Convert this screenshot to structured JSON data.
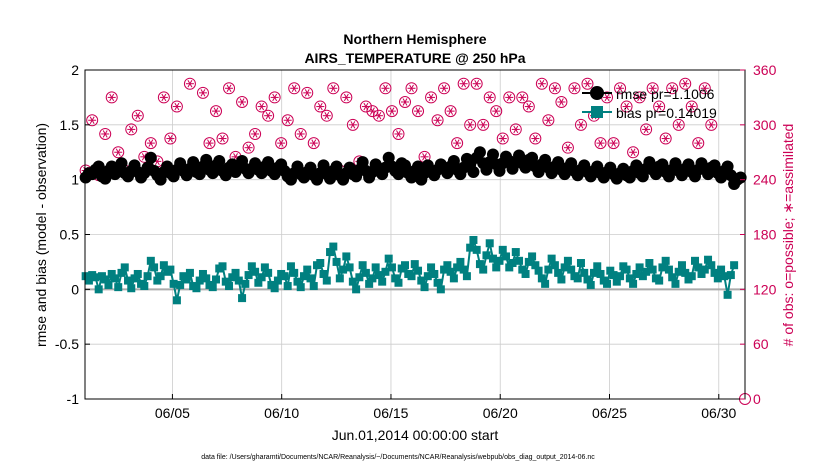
{
  "chart_data": {
    "type": "line",
    "title": "Northern Hemisphere",
    "subtitle": "AIRS_TEMPERATURE @ 250 hPa",
    "xlabel": "Jun.01,2014 00:00:00 start",
    "ylabel_left": "rmse and bias (model - observation)",
    "ylabel_right": "# of obs: o=possible; ∗=assimilated",
    "footnote": "data file: /Users/gharamti/Documents/NCAR/Reanalysis/~/Documents/NCAR/Reanalysis/webpub/obs_diag_output_2014-06.nc",
    "x_ticks": [
      {
        "day": 5,
        "label": "06/05"
      },
      {
        "day": 10,
        "label": "06/10"
      },
      {
        "day": 15,
        "label": "06/15"
      },
      {
        "day": 20,
        "label": "06/20"
      },
      {
        "day": 25,
        "label": "06/25"
      },
      {
        "day": 30,
        "label": "06/30"
      }
    ],
    "xlim_days": [
      1.0,
      31.2
    ],
    "ylim_left": [
      -1,
      2
    ],
    "y_ticks_left": [
      "2",
      "1.5",
      "1",
      "0.5",
      "0",
      "-0.5",
      "-1"
    ],
    "ylim_right": [
      0,
      360
    ],
    "y_ticks_right": [
      "360",
      "300",
      "240",
      "180",
      "120",
      "60",
      "0"
    ],
    "grid": true,
    "legend_placement": "top-right",
    "colors": {
      "rmse": "#000000",
      "bias": "#008080",
      "obs": "#cc0055",
      "zero_line": "#aaaaaa",
      "grid": "#cccccc"
    },
    "series": [
      {
        "name": "rmse pr=1.1006",
        "axis": "left",
        "values": [
          1.02,
          1.06,
          1.05,
          1.09,
          1.12,
          1.03,
          1.01,
          1.08,
          1.12,
          1.05,
          1.1,
          1.15,
          1.06,
          1.03,
          1.08,
          1.13,
          1.07,
          1.02,
          1.06,
          1.11,
          1.2,
          1.08,
          1.04,
          1.0,
          1.07,
          1.12,
          1.06,
          1.03,
          1.09,
          1.15,
          1.08,
          1.04,
          1.1,
          1.16,
          1.07,
          1.05,
          1.12,
          1.18,
          1.09,
          1.06,
          1.13,
          1.17,
          1.08,
          1.04,
          1.11,
          1.14,
          1.07,
          1.12,
          1.17,
          1.1,
          1.06,
          1.1,
          1.15,
          1.09,
          1.06,
          1.12,
          1.16,
          1.08,
          1.05,
          1.11,
          1.14,
          1.08,
          1.03,
          1.0,
          1.06,
          1.12,
          1.05,
          1.02,
          1.07,
          1.11,
          1.04,
          1.0,
          1.06,
          1.13,
          1.05,
          1.01,
          1.08,
          1.12,
          1.04,
          1.0,
          1.06,
          1.11,
          1.05,
          1.03,
          1.09,
          1.16,
          1.08,
          1.02,
          1.07,
          1.14,
          1.1,
          1.05,
          1.11,
          1.2,
          1.12,
          1.08,
          1.05,
          1.15,
          1.13,
          1.06,
          1.02,
          1.08,
          1.12,
          1.0,
          1.06,
          1.13,
          1.08,
          1.04,
          1.09,
          1.14,
          1.1,
          1.06,
          1.12,
          1.17,
          1.09,
          1.05,
          1.11,
          1.19,
          1.14,
          1.07,
          1.2,
          1.25,
          1.15,
          1.09,
          1.16,
          1.23,
          1.14,
          1.08,
          1.15,
          1.21,
          1.17,
          1.1,
          1.16,
          1.22,
          1.15,
          1.11,
          1.18,
          1.2,
          1.12,
          1.07,
          1.14,
          1.18,
          1.11,
          1.06,
          1.12,
          1.16,
          1.09,
          1.05,
          1.11,
          1.15,
          1.08,
          1.04,
          1.09,
          1.13,
          1.07,
          1.03,
          1.08,
          1.12,
          1.06,
          1.02,
          1.07,
          1.11,
          1.05,
          1.01,
          1.06,
          1.1,
          1.04,
          1.02,
          1.08,
          1.13,
          1.06,
          1.03,
          1.1,
          1.16,
          1.09,
          1.05,
          1.12,
          1.14,
          1.07,
          1.03,
          1.09,
          1.15,
          1.08,
          1.04,
          1.1,
          1.14,
          1.07,
          1.03,
          1.09,
          1.15,
          1.1,
          1.05,
          1.11,
          1.13,
          1.06,
          1.02,
          1.08,
          1.12,
          1.04,
          0.96,
          1.0,
          1.02
        ]
      },
      {
        "name": "bias pr=0.14019",
        "axis": "left",
        "values": [
          0.12,
          0.08,
          0.13,
          0.11,
          0.0,
          0.12,
          0.09,
          0.04,
          0.14,
          0.1,
          0.02,
          0.15,
          0.2,
          0.08,
          0.01,
          0.1,
          0.14,
          0.05,
          0.03,
          0.12,
          0.26,
          0.2,
          0.08,
          0.12,
          0.22,
          0.16,
          0.18,
          0.05,
          -0.1,
          0.04,
          0.12,
          0.09,
          0.15,
          0.03,
          0.01,
          0.08,
          0.14,
          0.1,
          0.04,
          0.02,
          0.09,
          0.19,
          0.21,
          0.07,
          0.03,
          0.11,
          0.15,
          0.08,
          -0.08,
          0.05,
          0.13,
          0.21,
          0.16,
          0.06,
          0.11,
          0.2,
          0.15,
          0.04,
          0.01,
          0.08,
          0.14,
          0.12,
          0.03,
          0.21,
          0.15,
          0.07,
          0.02,
          0.12,
          0.18,
          0.1,
          0.03,
          0.22,
          0.24,
          0.14,
          0.08,
          0.34,
          0.39,
          0.25,
          0.1,
          0.18,
          0.3,
          0.2,
          0.07,
          0.0,
          0.11,
          0.22,
          0.15,
          0.05,
          0.1,
          0.2,
          0.13,
          0.07,
          0.16,
          0.28,
          0.2,
          0.1,
          0.06,
          0.19,
          0.22,
          0.14,
          0.12,
          0.23,
          0.17,
          0.08,
          0.02,
          0.12,
          0.2,
          0.14,
          0.06,
          0.0,
          0.18,
          0.22,
          0.16,
          0.1,
          0.2,
          0.25,
          0.18,
          0.12,
          0.38,
          0.45,
          0.36,
          0.23,
          0.18,
          0.31,
          0.42,
          0.28,
          0.2,
          0.26,
          0.36,
          0.3,
          0.2,
          0.24,
          0.34,
          0.26,
          0.18,
          0.14,
          0.25,
          0.3,
          0.22,
          0.17,
          0.1,
          0.05,
          0.18,
          0.28,
          0.22,
          0.15,
          0.09,
          0.2,
          0.26,
          0.18,
          0.12,
          0.1,
          0.24,
          0.15,
          0.09,
          0.04,
          0.15,
          0.21,
          0.14,
          0.08,
          0.05,
          0.17,
          0.13,
          0.07,
          0.12,
          0.21,
          0.18,
          0.1,
          0.05,
          0.14,
          0.2,
          0.12,
          0.16,
          0.24,
          0.18,
          0.1,
          0.08,
          0.2,
          0.26,
          0.18,
          0.11,
          0.05,
          0.16,
          0.22,
          0.15,
          0.09,
          0.12,
          0.26,
          0.2,
          0.14,
          0.18,
          0.27,
          0.22,
          0.15,
          0.1,
          0.18,
          0.12,
          -0.05,
          0.13,
          0.22
        ]
      },
      {
        "name": "possible",
        "axis": "right",
        "values": [
          250,
          320,
          305,
          250,
          245,
          340,
          290,
          260,
          330,
          300,
          270,
          285,
          250,
          320,
          295,
          260,
          310,
          330,
          265,
          255,
          280,
          335,
          260,
          265,
          330,
          335,
          285,
          280,
          320,
          310,
          250,
          340,
          345,
          290,
          250,
          260,
          335,
          305,
          280,
          330,
          315,
          265,
          285,
          330,
          340,
          300,
          265,
          260,
          325,
          310,
          275,
          345,
          290,
          265,
          320,
          340,
          310,
          255,
          330,
          315,
          280,
          295,
          305,
          250,
          340,
          340,
          290,
          250,
          335,
          330,
          280,
          275,
          320,
          335,
          310,
          285,
          340,
          310,
          250,
          285,
          330,
          315,
          300,
          310,
          260,
          340,
          320,
          280,
          315,
          330,
          310,
          275,
          340,
          325,
          315,
          300,
          290,
          335,
          325,
          310,
          340,
          335,
          315,
          300,
          265,
          340,
          330,
          320,
          305,
          290,
          340,
          335,
          315,
          300,
          280,
          330,
          345,
          315,
          300,
          340,
          345,
          320,
          300,
          280,
          330,
          340,
          315,
          300,
          285,
          340,
          330,
          310,
          295,
          245,
          330,
          345,
          320,
          300,
          285,
          340,
          345,
          330,
          305,
          270,
          340,
          345,
          325,
          300,
          275,
          335,
          340,
          320,
          300,
          270,
          345,
          335,
          310,
          295,
          280,
          340,
          330,
          315,
          280,
          265,
          340,
          345,
          320,
          300,
          270,
          345,
          330,
          315,
          295,
          280,
          340,
          340,
          320,
          305,
          285,
          345,
          340,
          320,
          300,
          280,
          345,
          340,
          320,
          300,
          280,
          345,
          340,
          320,
          300,
          295
        ]
      },
      {
        "name": "assimilated",
        "axis": "right",
        "values": [
          250,
          320,
          305,
          250,
          245,
          340,
          290,
          260,
          330,
          300,
          270,
          285,
          250,
          320,
          295,
          260,
          310,
          330,
          265,
          255,
          280,
          335,
          260,
          265,
          330,
          335,
          285,
          280,
          320,
          310,
          250,
          340,
          345,
          290,
          250,
          260,
          335,
          305,
          280,
          330,
          315,
          265,
          285,
          330,
          340,
          300,
          265,
          260,
          325,
          310,
          275,
          345,
          290,
          265,
          320,
          340,
          310,
          255,
          330,
          315,
          280,
          295,
          305,
          250,
          340,
          340,
          290,
          250,
          335,
          330,
          280,
          275,
          320,
          335,
          310,
          285,
          340,
          310,
          250,
          285,
          330,
          315,
          300,
          310,
          260,
          340,
          320,
          280,
          315,
          330,
          310,
          275,
          340,
          325,
          315,
          300,
          290,
          335,
          325,
          310,
          340,
          335,
          315,
          300,
          265,
          340,
          330,
          320,
          305,
          290,
          340,
          335,
          315,
          300,
          280,
          330,
          345,
          315,
          300,
          340,
          345,
          320,
          300,
          280,
          330,
          340,
          315,
          300,
          285,
          340,
          330,
          310,
          295,
          245,
          330,
          345,
          320,
          300,
          285,
          340,
          345,
          330,
          305,
          270,
          340,
          345,
          325,
          300,
          275,
          335,
          340,
          320,
          300,
          270,
          345,
          335,
          310,
          295,
          280,
          340,
          330,
          315,
          280,
          265,
          340,
          345,
          320,
          300,
          270,
          345,
          330,
          315,
          295,
          280,
          340,
          340,
          320,
          305,
          285,
          345,
          340,
          320,
          300,
          280,
          345,
          340,
          320,
          300,
          280,
          345,
          340,
          320,
          300,
          295
        ]
      }
    ]
  }
}
